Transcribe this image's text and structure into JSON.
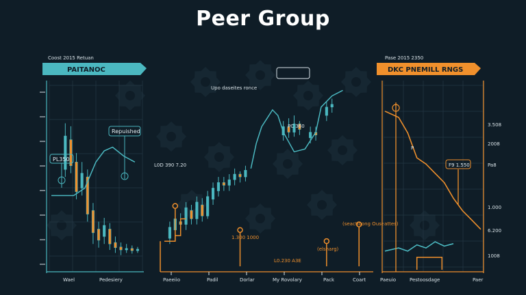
{
  "title": "Peer Group",
  "colors": {
    "background": "#0f1d27",
    "teal": "#4bb8c0",
    "orange": "#f0902c",
    "grid": "#253845",
    "gear": "#1a2e3a",
    "text": "#d9e3e8"
  },
  "chart_data": [
    {
      "type": "candlestick",
      "panel": "left",
      "banner": "PAITANOC",
      "caption": "Coost 2015 Retuan",
      "annotations": [
        "Repuished",
        "PL350"
      ],
      "x_tick_labels": [
        "Wael",
        "Pedesiery"
      ],
      "y_tick_count": 8,
      "candles": [
        {
          "x": 5,
          "open": 1.3,
          "close": 1.75,
          "high": 1.92,
          "low": 1.2
        },
        {
          "x": 7,
          "open": 1.7,
          "close": 1.35,
          "high": 1.88,
          "low": 1.25
        },
        {
          "x": 9,
          "open": 1.4,
          "close": 1.0,
          "high": 1.52,
          "low": 0.9
        },
        {
          "x": 11,
          "open": 1.05,
          "close": 1.25,
          "high": 1.4,
          "low": 0.95
        },
        {
          "x": 13,
          "open": 1.2,
          "close": 0.7,
          "high": 1.3,
          "low": 0.6
        },
        {
          "x": 15,
          "open": 0.75,
          "close": 0.45,
          "high": 0.85,
          "low": 0.3
        },
        {
          "x": 17,
          "open": 0.5,
          "close": 0.35,
          "high": 0.6,
          "low": 0.25
        },
        {
          "x": 19,
          "open": 0.4,
          "close": 0.55,
          "high": 0.65,
          "low": 0.3
        },
        {
          "x": 21,
          "open": 0.5,
          "close": 0.3,
          "high": 0.58,
          "low": 0.22
        },
        {
          "x": 23,
          "open": 0.32,
          "close": 0.25,
          "high": 0.4,
          "low": 0.18
        },
        {
          "x": 25,
          "open": 0.26,
          "close": 0.22,
          "high": 0.32,
          "low": 0.15
        },
        {
          "x": 27,
          "open": 0.22,
          "close": 0.24,
          "high": 0.3,
          "low": 0.18
        },
        {
          "x": 29,
          "open": 0.24,
          "close": 0.21,
          "high": 0.28,
          "low": 0.17
        },
        {
          "x": 31,
          "open": 0.21,
          "close": 0.23,
          "high": 0.26,
          "low": 0.18
        }
      ],
      "line": [
        [
          0,
          0.95
        ],
        [
          8,
          0.95
        ],
        [
          12,
          1.05
        ],
        [
          16,
          1.4
        ],
        [
          19,
          1.55
        ],
        [
          22,
          1.6
        ],
        [
          26,
          1.48
        ],
        [
          30,
          1.4
        ]
      ]
    },
    {
      "type": "candlestick",
      "panel": "middle",
      "annotations": [
        "Upo daseites ronce",
        "L0D 390 7.20",
        "PC 360",
        "1.300 1000",
        "L0.230 A3E",
        "(seactioong Ouseattes)",
        "(elsnarg)"
      ],
      "x_tick_labels": [
        "Paeeiio",
        "Padil",
        "Dorlar",
        "My Rovolary",
        "Pack",
        "Coart"
      ],
      "candles": [
        {
          "x": 1,
          "open": 0.2,
          "close": 0.4,
          "high": 0.5,
          "low": 0.1
        },
        {
          "x": 2,
          "open": 0.35,
          "close": 0.55,
          "high": 0.65,
          "low": 0.25
        },
        {
          "x": 3,
          "open": 0.5,
          "close": 0.45,
          "high": 0.65,
          "low": 0.35
        },
        {
          "x": 4,
          "open": 0.45,
          "close": 0.75,
          "high": 0.85,
          "low": 0.35
        },
        {
          "x": 5,
          "open": 0.7,
          "close": 0.55,
          "high": 0.8,
          "low": 0.45
        },
        {
          "x": 6,
          "open": 0.55,
          "close": 0.85,
          "high": 0.95,
          "low": 0.45
        },
        {
          "x": 7,
          "open": 0.8,
          "close": 0.6,
          "high": 0.92,
          "low": 0.5
        },
        {
          "x": 8,
          "open": 0.6,
          "close": 0.95,
          "high": 1.05,
          "low": 0.55
        },
        {
          "x": 9,
          "open": 0.9,
          "close": 1.1,
          "high": 1.2,
          "low": 0.8
        },
        {
          "x": 10,
          "open": 1.05,
          "close": 1.2,
          "high": 1.3,
          "low": 0.95
        },
        {
          "x": 11,
          "open": 1.2,
          "close": 1.15,
          "high": 1.3,
          "low": 1.05
        },
        {
          "x": 12,
          "open": 1.15,
          "close": 1.25,
          "high": 1.35,
          "low": 1.05
        },
        {
          "x": 13,
          "open": 1.25,
          "close": 1.35,
          "high": 1.45,
          "low": 1.15
        },
        {
          "x": 14,
          "open": 1.35,
          "close": 1.3,
          "high": 1.4,
          "low": 1.2
        },
        {
          "x": 15,
          "open": 1.3,
          "close": 1.42,
          "high": 1.5,
          "low": 1.22
        },
        {
          "x": 22,
          "open": 2.05,
          "close": 2.2,
          "high": 2.3,
          "low": 1.95
        },
        {
          "x": 23,
          "open": 2.2,
          "close": 2.1,
          "high": 2.35,
          "low": 2.0
        },
        {
          "x": 24,
          "open": 2.1,
          "close": 2.25,
          "high": 2.4,
          "low": 2.02
        },
        {
          "x": 25,
          "open": 2.25,
          "close": 2.15,
          "high": 2.3,
          "low": 2.05
        },
        {
          "x": 27,
          "open": 2.0,
          "close": 2.1,
          "high": 2.2,
          "low": 1.9
        },
        {
          "x": 28,
          "open": 2.1,
          "close": 2.05,
          "high": 2.2,
          "low": 1.95
        },
        {
          "x": 30,
          "open": 2.4,
          "close": 2.55,
          "high": 2.65,
          "low": 2.3
        },
        {
          "x": 31,
          "open": 2.55,
          "close": 2.6,
          "high": 2.7,
          "low": 2.45
        }
      ],
      "line": [
        [
          16,
          1.45
        ],
        [
          17,
          1.9
        ],
        [
          18,
          2.2
        ],
        [
          19,
          2.35
        ],
        [
          20,
          2.5
        ],
        [
          21,
          2.4
        ],
        [
          22,
          2.1
        ],
        [
          24,
          1.75
        ],
        [
          26,
          1.8
        ],
        [
          28,
          2.1
        ],
        [
          29,
          2.55
        ],
        [
          31,
          2.75
        ],
        [
          33,
          2.85
        ]
      ],
      "orange_step": [
        [
          0,
          0.15
        ],
        [
          2,
          0.15
        ],
        [
          2,
          0.25
        ],
        [
          3,
          0.25
        ],
        [
          3,
          0.55
        ],
        [
          4,
          0.55
        ]
      ],
      "orange_markers": [
        {
          "x": 2,
          "y": 0.78,
          "base": 0.15
        },
        {
          "x": 14,
          "y": 0.35,
          "base": -0.3
        },
        {
          "x": 30,
          "y": 0.15,
          "base": -0.3
        },
        {
          "x": 36,
          "y": 0.45,
          "base": -0.3
        }
      ]
    },
    {
      "type": "line",
      "panel": "right",
      "banner": "DKC PNEMILL RNGS",
      "caption": "Pase 2015 2350",
      "annotations": [
        "F9 1.550",
        "P"
      ],
      "x_tick_labels": [
        "Paeuio",
        "Pestoosdage",
        "Paer"
      ],
      "y_tick_labels": [
        "3.508",
        "2008",
        "Pa8",
        "1.000",
        "6.200",
        "1008"
      ],
      "series": [
        {
          "name": "",
          "color": "#f0902c",
          "points": [
            [
              0,
              2.55
            ],
            [
              6,
              2.45
            ],
            [
              10,
              2.2
            ],
            [
              14,
              1.8
            ],
            [
              18,
              1.7
            ],
            [
              22,
              1.55
            ],
            [
              26,
              1.4
            ],
            [
              30,
              1.15
            ],
            [
              34,
              0.95
            ],
            [
              38,
              0.8
            ],
            [
              42,
              0.65
            ]
          ]
        },
        {
          "name": "",
          "color": "#4bb8c0",
          "points": [
            [
              0,
              0.3
            ],
            [
              6,
              0.35
            ],
            [
              10,
              0.3
            ],
            [
              14,
              0.4
            ],
            [
              18,
              0.35
            ],
            [
              22,
              0.45
            ],
            [
              26,
              0.38
            ],
            [
              30,
              0.42
            ]
          ]
        }
      ],
      "orange_bar": [
        [
          14,
          0
        ],
        [
          14,
          0.2
        ],
        [
          25,
          0.2
        ],
        [
          25,
          0
        ]
      ]
    }
  ]
}
